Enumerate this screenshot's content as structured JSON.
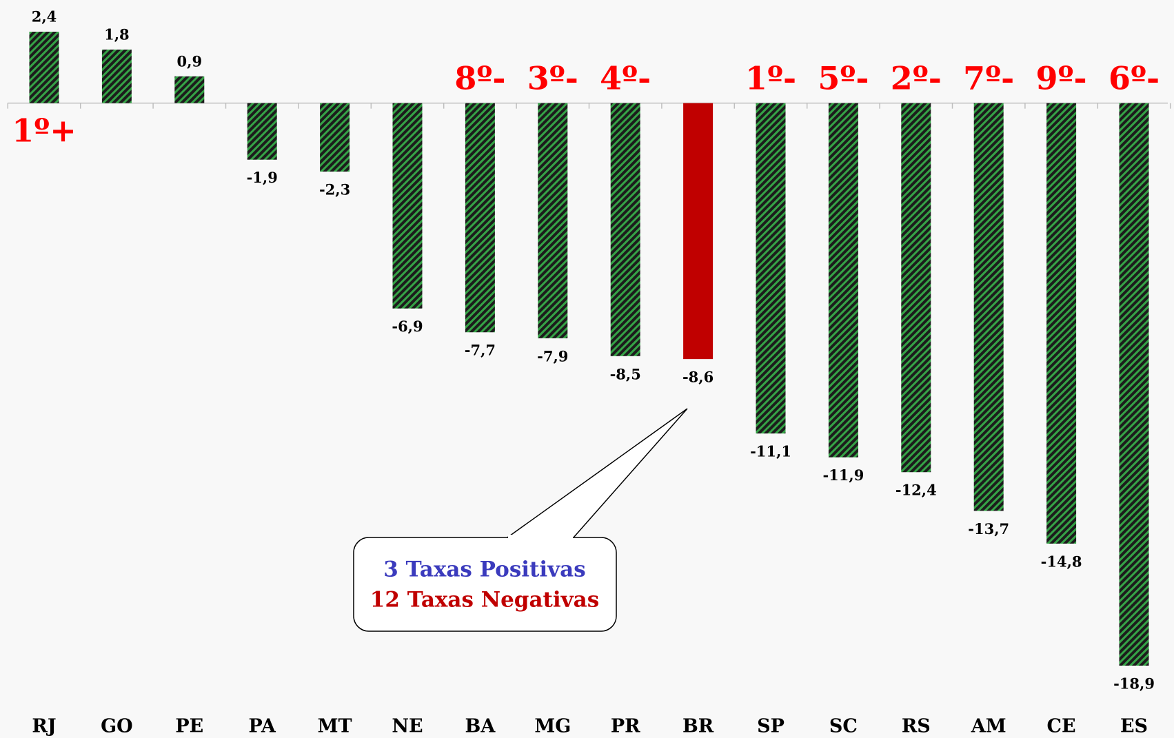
{
  "chart_data": {
    "type": "bar",
    "categories": [
      "RJ",
      "GO",
      "PE",
      "PA",
      "MT",
      "NE",
      "BA",
      "MG",
      "PR",
      "BR",
      "SP",
      "SC",
      "RS",
      "AM",
      "CE",
      "ES"
    ],
    "values": [
      2.4,
      1.8,
      0.9,
      -1.9,
      -2.3,
      -6.9,
      -7.7,
      -7.9,
      -8.5,
      -8.6,
      -11.1,
      -11.9,
      -12.4,
      -13.7,
      -14.8,
      -18.9
    ],
    "value_labels": [
      "2,4",
      "1,8",
      "0,9",
      "-1,9",
      "-2,3",
      "-6,9",
      "-7,7",
      "-7,9",
      "-8,5",
      "-8,6",
      "-11,1",
      "-11,9",
      "-12,4",
      "-13,7",
      "-14,8",
      "-18,9"
    ],
    "colors": [
      "#35a346",
      "#35a346",
      "#35a346",
      "#35a346",
      "#35a346",
      "#35a346",
      "#35a346",
      "#35a346",
      "#35a346",
      "#c00000",
      "#35a346",
      "#35a346",
      "#35a346",
      "#35a346",
      "#35a346",
      "#35a346"
    ],
    "hatch": [
      true,
      true,
      true,
      true,
      true,
      true,
      true,
      true,
      true,
      false,
      true,
      true,
      true,
      true,
      true,
      true
    ],
    "annotations": [
      "1º+",
      null,
      null,
      null,
      null,
      null,
      "8º-",
      "3º-",
      "4º-",
      null,
      "1º-",
      "5º-",
      "2º-",
      "7º-",
      "9º-",
      "6º-"
    ],
    "callout": {
      "lines": [
        "3 Taxas Positivas",
        "12 Taxas Negativas"
      ],
      "colors": [
        "#3b3bbd",
        "#c00000"
      ]
    }
  }
}
